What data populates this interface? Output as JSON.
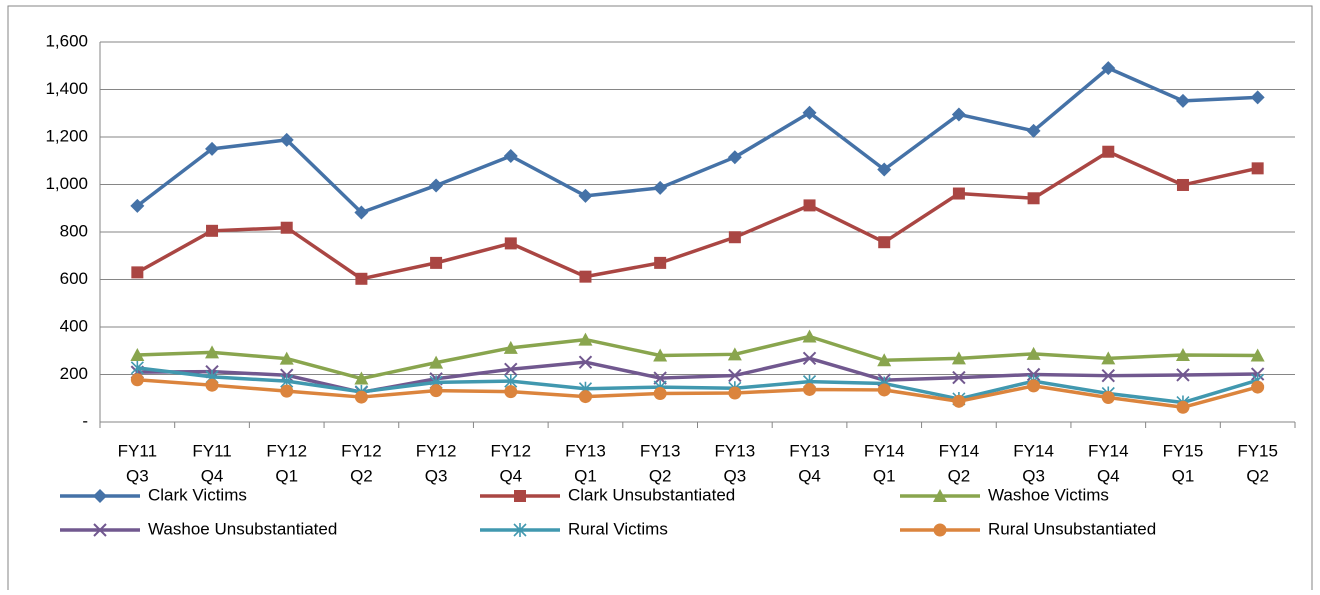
{
  "chart_data": {
    "type": "line",
    "categories": [
      [
        "FY11",
        "Q3"
      ],
      [
        "FY11",
        "Q4"
      ],
      [
        "FY12",
        "Q1"
      ],
      [
        "FY12",
        "Q2"
      ],
      [
        "FY12",
        "Q3"
      ],
      [
        "FY12",
        "Q4"
      ],
      [
        "FY13",
        "Q1"
      ],
      [
        "FY13",
        "Q2"
      ],
      [
        "FY13",
        "Q3"
      ],
      [
        "FY13",
        "Q4"
      ],
      [
        "FY14",
        "Q1"
      ],
      [
        "FY14",
        "Q2"
      ],
      [
        "FY14",
        "Q3"
      ],
      [
        "FY14",
        "Q4"
      ],
      [
        "FY15",
        "Q1"
      ],
      [
        "FY15",
        "Q2"
      ]
    ],
    "series": [
      {
        "name": "Clark Victims",
        "color": "#4572a7",
        "marker": "diamond",
        "values": [
          910,
          1150,
          1188,
          882,
          996,
          1120,
          952,
          986,
          1115,
          1302,
          1063,
          1295,
          1226,
          1490,
          1352,
          1367
        ]
      },
      {
        "name": "Clark Unsubstantiated",
        "color": "#aa4643",
        "marker": "square",
        "values": [
          630,
          805,
          818,
          603,
          670,
          752,
          612,
          670,
          778,
          912,
          757,
          962,
          942,
          1138,
          998,
          1068
        ]
      },
      {
        "name": "Washoe Victims",
        "color": "#89a54e",
        "marker": "triangle",
        "values": [
          282,
          293,
          267,
          183,
          250,
          312,
          347,
          280,
          285,
          360,
          260,
          268,
          287,
          268,
          282,
          280
        ]
      },
      {
        "name": "Washoe Unsubstantiated",
        "color": "#71588f",
        "marker": "x",
        "values": [
          210,
          212,
          197,
          125,
          182,
          222,
          252,
          185,
          196,
          268,
          176,
          187,
          200,
          195,
          198,
          202
        ]
      },
      {
        "name": "Rural Victims",
        "color": "#4198af",
        "marker": "star",
        "values": [
          228,
          190,
          172,
          127,
          167,
          172,
          140,
          147,
          142,
          170,
          162,
          97,
          172,
          120,
          82,
          176
        ]
      },
      {
        "name": "Rural Unsubstantiated",
        "color": "#db843d",
        "marker": "circle",
        "values": [
          178,
          155,
          130,
          105,
          132,
          128,
          107,
          120,
          122,
          137,
          135,
          87,
          152,
          103,
          62,
          147
        ]
      }
    ],
    "ylim": [
      0,
      1600
    ],
    "yticks": [
      {
        "value": 0,
        "label": "-"
      },
      200,
      400,
      600,
      800,
      {
        "value": 1000,
        "label": "1,000"
      },
      {
        "value": 1200,
        "label": "1,200"
      },
      {
        "value": 1400,
        "label": "1,400"
      },
      {
        "value": 1600,
        "label": "1,600"
      }
    ],
    "grid": true,
    "legend": "bottom"
  }
}
